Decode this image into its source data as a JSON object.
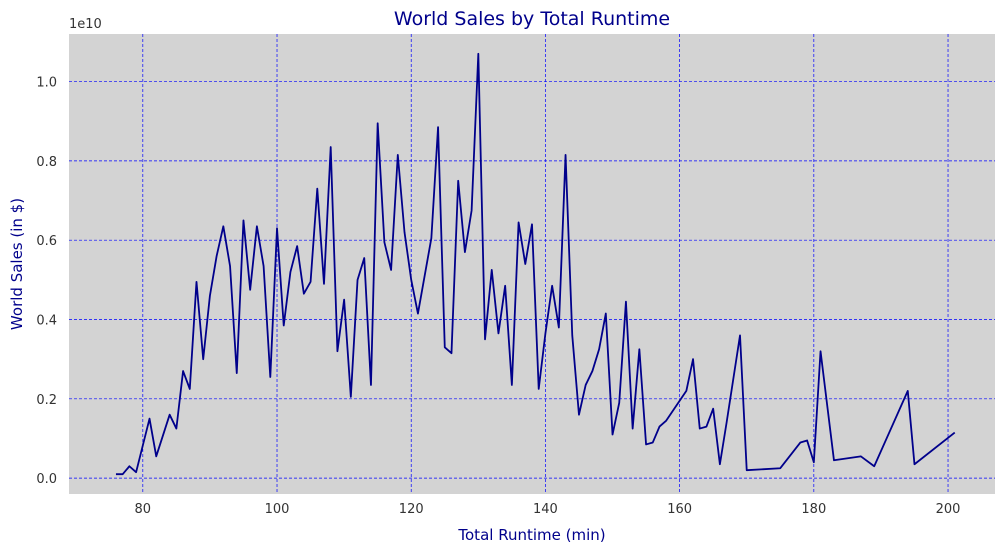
{
  "chart_data": {
    "type": "line",
    "title": "World Sales by Total Runtime",
    "xlabel": "Total Runtime (min)",
    "ylabel": "World Sales (in $)",
    "y_offset_label": "1e10",
    "xlim": [
      69,
      207
    ],
    "ylim": [
      -0.04,
      1.12
    ],
    "xticks": [
      80,
      100,
      120,
      140,
      160,
      180,
      200
    ],
    "yticks": [
      0.0,
      0.2,
      0.4,
      0.6,
      0.8,
      1.0
    ],
    "ytick_labels": [
      "0.0",
      "0.2",
      "0.4",
      "0.6",
      "0.8",
      "1.0"
    ],
    "grid": true,
    "series": [
      {
        "x": [
          76,
          77,
          78,
          79,
          81,
          82,
          84,
          85,
          86,
          87,
          88,
          89,
          90,
          91,
          92,
          93,
          94,
          95,
          96,
          97,
          98,
          99,
          100,
          101,
          102,
          103,
          104,
          105,
          106,
          107,
          108,
          109,
          110,
          111,
          112,
          113,
          114,
          115,
          116,
          117,
          118,
          119,
          120,
          121,
          123,
          124,
          125,
          126,
          127,
          128,
          129,
          130,
          131,
          132,
          133,
          134,
          135,
          136,
          137,
          138,
          139,
          140,
          141,
          142,
          143,
          144,
          145,
          146,
          147,
          148,
          149,
          150,
          151,
          152,
          153,
          154,
          155,
          156,
          157,
          158,
          161,
          162,
          163,
          164,
          165,
          166,
          167,
          169,
          170,
          175,
          178,
          179,
          180,
          181,
          183,
          187,
          189,
          194,
          195,
          201
        ],
        "y": [
          0.01,
          0.01,
          0.03,
          0.015,
          0.15,
          0.055,
          0.16,
          0.125,
          0.27,
          0.225,
          0.495,
          0.3,
          0.46,
          0.56,
          0.635,
          0.535,
          0.265,
          0.65,
          0.475,
          0.635,
          0.535,
          0.255,
          0.63,
          0.385,
          0.52,
          0.585,
          0.465,
          0.495,
          0.73,
          0.49,
          0.835,
          0.32,
          0.45,
          0.205,
          0.5,
          0.555,
          0.235,
          0.895,
          0.595,
          0.525,
          0.815,
          0.62,
          0.5,
          0.415,
          0.605,
          0.885,
          0.33,
          0.315,
          0.75,
          0.57,
          0.675,
          1.07,
          0.35,
          0.525,
          0.365,
          0.485,
          0.235,
          0.645,
          0.54,
          0.64,
          0.225,
          0.365,
          0.485,
          0.38,
          0.815,
          0.36,
          0.16,
          0.235,
          0.27,
          0.325,
          0.415,
          0.11,
          0.19,
          0.445,
          0.125,
          0.325,
          0.085,
          0.09,
          0.13,
          0.145,
          0.22,
          0.3,
          0.125,
          0.13,
          0.175,
          0.035,
          0.14,
          0.36,
          0.02,
          0.025,
          0.09,
          0.095,
          0.04,
          0.32,
          0.045,
          0.055,
          0.03,
          0.22,
          0.035,
          0.115
        ]
      }
    ]
  },
  "colors": {
    "plot_background": "#d3d3d3",
    "line": "#00008b",
    "grid": "#0000ff",
    "axis_text": "#00008b"
  }
}
